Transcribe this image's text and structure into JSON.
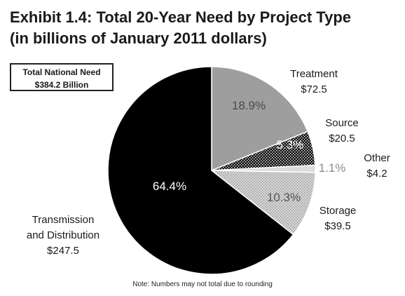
{
  "chart_data": {
    "type": "pie",
    "title": "Exhibit 1.4: Total 20-Year Need by Project Type",
    "subtitle": "(in billions of January 2011 dollars)",
    "total_box": {
      "line1": "Total National Need",
      "line2": "$384.2 Billion"
    },
    "note": "Note: Numbers may not total due to rounding",
    "slices": [
      {
        "key": "treatment",
        "label_lines": [
          "Treatment"
        ],
        "value_label": "$72.5",
        "value": 72.5,
        "percent_label": "18.9%",
        "fill": "#9e9e9e",
        "percent_color": "#4a4a4a"
      },
      {
        "key": "source",
        "label_lines": [
          "Source"
        ],
        "value_label": "$20.5",
        "value": 20.5,
        "percent_label": "5.3%",
        "fill": "pattern-source",
        "percent_color": "#ffffff"
      },
      {
        "key": "other",
        "label_lines": [
          "Other"
        ],
        "value_label": "$4.2",
        "value": 4.2,
        "percent_label": "1.1%",
        "fill": "#dcdcdc",
        "percent_color": "#8a8a8a"
      },
      {
        "key": "storage",
        "label_lines": [
          "Storage"
        ],
        "value_label": "$39.5",
        "value": 39.5,
        "percent_label": "10.3%",
        "fill": "pattern-storage",
        "percent_color": "#555555"
      },
      {
        "key": "transmission",
        "label_lines": [
          "Transmission",
          "and Distribution"
        ],
        "value_label": "$247.5",
        "value": 247.5,
        "percent_label": "64.4%",
        "fill": "#000000",
        "percent_color": "#ffffff"
      }
    ]
  }
}
